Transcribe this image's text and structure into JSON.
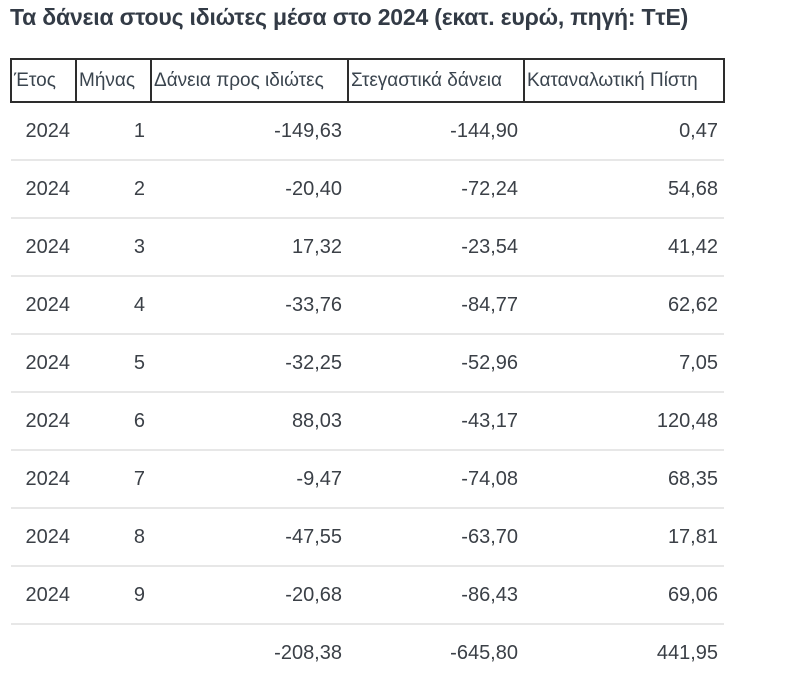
{
  "title": "Τα δάνεια στους ιδιώτες μέσα στο 2024 (εκατ. ευρώ, πηγή: ΤτΕ)",
  "table": {
    "headers": [
      "Έτος",
      "Μήνας",
      "Δάνεια προς ιδιώτες",
      "Στεγαστικά δάνεια",
      "Καταναλωτική Πίστη"
    ],
    "rows": [
      [
        "2024",
        "1",
        "-149,63",
        "-144,90",
        "0,47"
      ],
      [
        "2024",
        "2",
        "-20,40",
        "-72,24",
        "54,68"
      ],
      [
        "2024",
        "3",
        "17,32",
        "-23,54",
        "41,42"
      ],
      [
        "2024",
        "4",
        "-33,76",
        "-84,77",
        "62,62"
      ],
      [
        "2024",
        "5",
        "-32,25",
        "-52,96",
        "7,05"
      ],
      [
        "2024",
        "6",
        "88,03",
        "-43,17",
        "120,48"
      ],
      [
        "2024",
        "7",
        "-9,47",
        "-74,08",
        "68,35"
      ],
      [
        "2024",
        "8",
        "-47,55",
        "-63,70",
        "17,81"
      ],
      [
        "2024",
        "9",
        "-20,68",
        "-86,43",
        "69,06"
      ]
    ],
    "total_row": [
      "",
      "",
      "-208,38",
      "-645,80",
      "441,95"
    ]
  },
  "colors": {
    "title_text": "#333b46",
    "header_text": "#3a444e",
    "cell_text": "#3b4047",
    "header_border": "#2d2d2d",
    "row_divider": "#e7e7e7",
    "background": "#ffffff"
  },
  "chart_data": {
    "type": "table",
    "title": "Τα δάνεια στους ιδιώτες μέσα στο 2024 (εκατ. ευρώ, πηγή: ΤτΕ)",
    "unit": "εκατ. ευρώ",
    "source": "ΤτΕ",
    "columns": [
      "Έτος",
      "Μήνας",
      "Δάνεια προς ιδιώτες",
      "Στεγαστικά δάνεια",
      "Καταναλωτική Πίστη"
    ],
    "year": 2024,
    "categories": [
      1,
      2,
      3,
      4,
      5,
      6,
      7,
      8,
      9
    ],
    "series": [
      {
        "name": "Δάνεια προς ιδιώτες",
        "values": [
          -149.63,
          -20.4,
          17.32,
          -33.76,
          -32.25,
          88.03,
          -9.47,
          -47.55,
          -20.68
        ],
        "total": -208.38
      },
      {
        "name": "Στεγαστικά δάνεια",
        "values": [
          -144.9,
          -72.24,
          -23.54,
          -84.77,
          -52.96,
          -43.17,
          -74.08,
          -63.7,
          -86.43
        ],
        "total": -645.8
      },
      {
        "name": "Καταναλωτική Πίστη",
        "values": [
          0.47,
          54.68,
          41.42,
          62.62,
          7.05,
          120.48,
          68.35,
          17.81,
          69.06
        ],
        "total": 441.95
      }
    ]
  }
}
